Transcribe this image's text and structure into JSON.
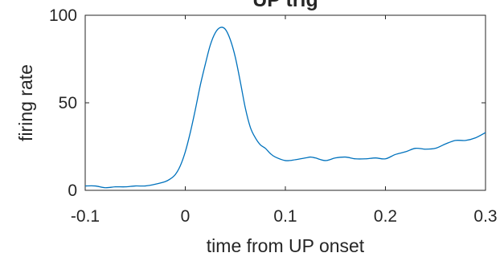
{
  "chart_data": {
    "type": "line",
    "title": "UP trig",
    "xlabel": "time from UP onset",
    "ylabel": "firing rate",
    "xlim": [
      -0.1,
      0.3
    ],
    "ylim": [
      0,
      100
    ],
    "xticks": [
      -0.1,
      0,
      0.1,
      0.2,
      0.3
    ],
    "xtick_labels": [
      "-0.1",
      "0",
      "0.1",
      "0.2",
      "0.3"
    ],
    "yticks": [
      0,
      50,
      100
    ],
    "ytick_labels": [
      "0",
      "50",
      "100"
    ],
    "grid": false,
    "box": true,
    "colors": {
      "line": "#0072bd",
      "axes": "#262626"
    },
    "series": [
      {
        "x": [
          -0.1,
          -0.09,
          -0.08,
          -0.07,
          -0.06,
          -0.05,
          -0.04,
          -0.03,
          -0.02,
          -0.015,
          -0.01,
          -0.005,
          0,
          0.005,
          0.01,
          0.015,
          0.02,
          0.025,
          0.03,
          0.035,
          0.04,
          0.045,
          0.05,
          0.055,
          0.06,
          0.065,
          0.07,
          0.075,
          0.08,
          0.085,
          0.09,
          0.1,
          0.11,
          0.12,
          0.125,
          0.13,
          0.14,
          0.15,
          0.16,
          0.17,
          0.18,
          0.19,
          0.2,
          0.21,
          0.22,
          0.23,
          0.24,
          0.25,
          0.26,
          0.27,
          0.28,
          0.29,
          0.3
        ],
        "y": [
          2.5,
          2.5,
          1.5,
          2,
          2,
          2.5,
          2.5,
          3.5,
          5,
          6.5,
          9,
          14,
          22,
          33,
          46,
          60,
          72,
          83,
          90,
          93,
          92,
          86,
          76,
          62,
          47,
          36,
          30,
          26,
          24,
          21,
          19,
          17,
          17.5,
          18.5,
          19,
          18.5,
          17,
          18.5,
          19,
          18,
          18,
          18.5,
          18,
          20.5,
          22,
          24,
          23.5,
          24,
          26.5,
          28.5,
          28.5,
          30,
          33
        ]
      }
    ]
  }
}
